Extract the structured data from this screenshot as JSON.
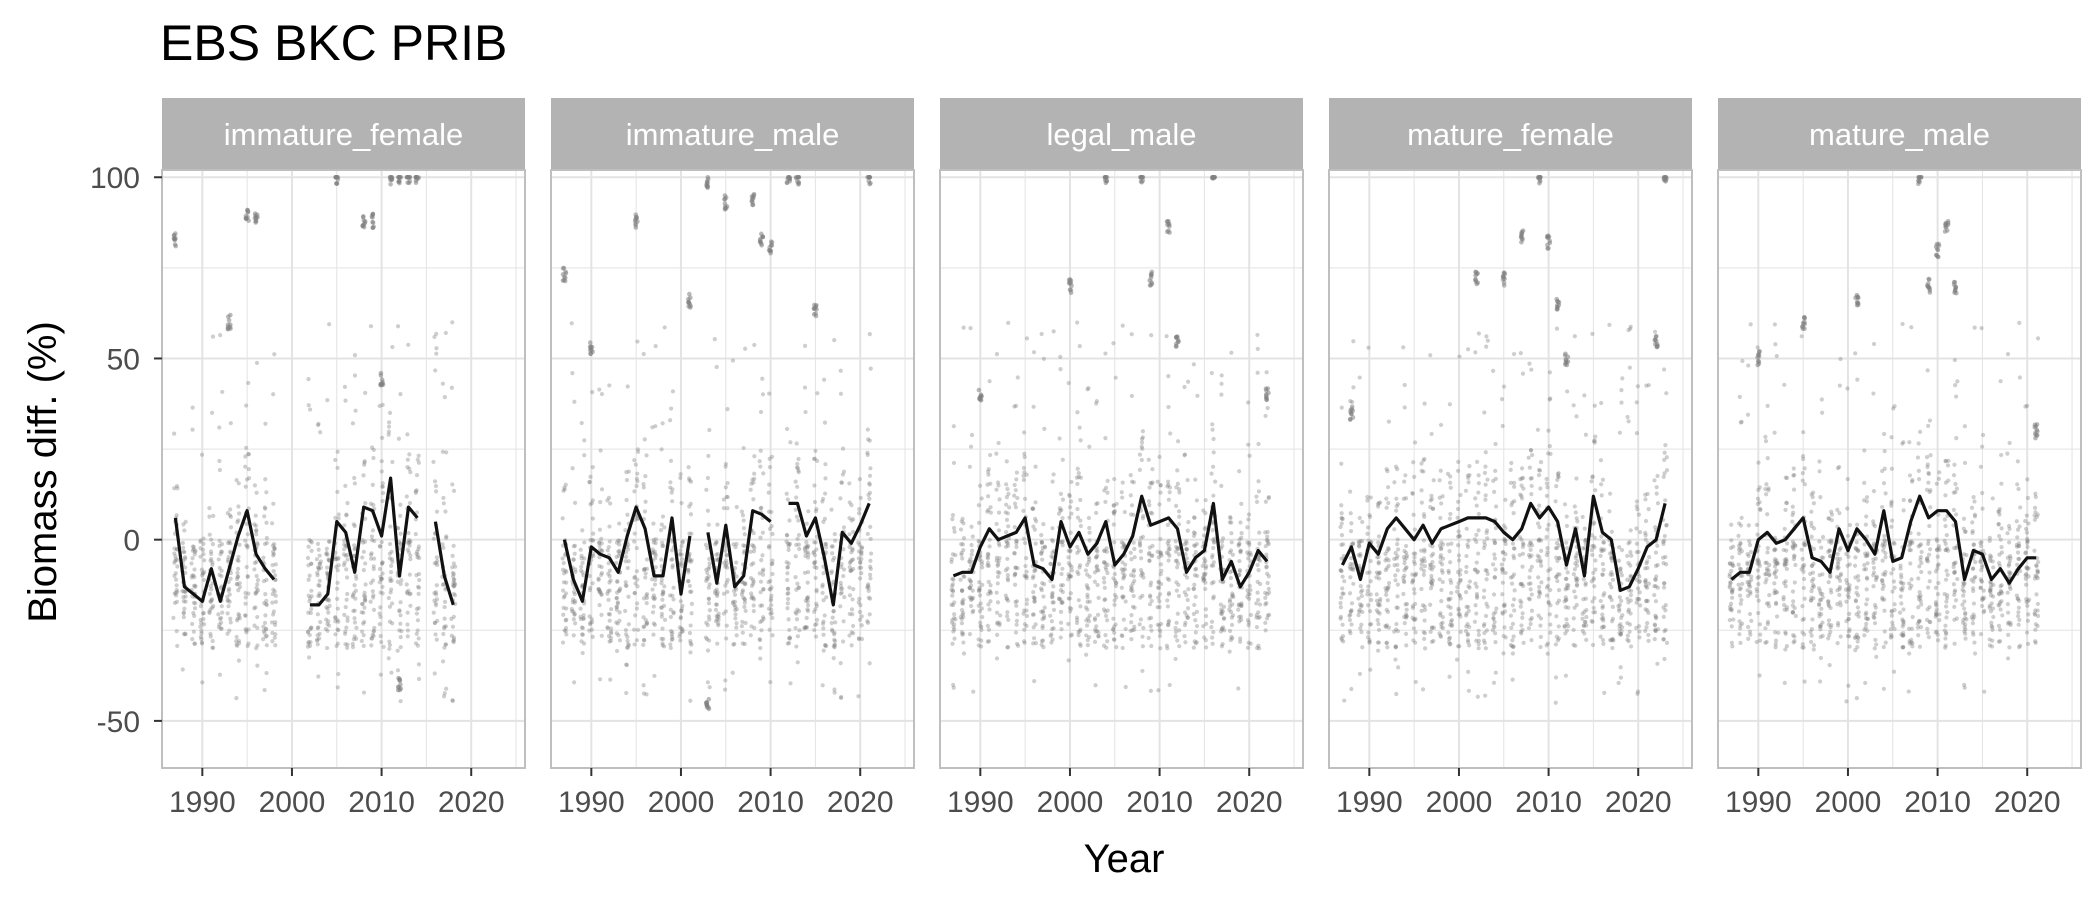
{
  "chart_data": {
    "type": "scatter",
    "title": "EBS BKC PRIB",
    "xlabel": "Year",
    "ylabel": "Biomass diff. (%)",
    "xlim": [
      1985.5,
      2026
    ],
    "ylim": [
      -63,
      102
    ],
    "x_ticks": [
      1990,
      2000,
      2010,
      2020
    ],
    "y_ticks": [
      -50,
      0,
      50,
      100
    ],
    "grid": true,
    "colors": {
      "points": "#7f7f7f",
      "line": "#111111",
      "strip": "#b3b3b3",
      "strip_text": "#ffffff",
      "grid": "#e3e3e3",
      "panel_border": "#bfbfbf"
    },
    "panels": [
      {
        "name": "immature_female",
        "series": [
          {
            "segments": [
              [
                [
                  1987,
                  6
                ],
                [
                  1988,
                  -13
                ],
                [
                  1989,
                  -15
                ],
                [
                  1990,
                  -17
                ],
                [
                  1991,
                  -8
                ],
                [
                  1992,
                  -17
                ],
                [
                  1993,
                  -8
                ],
                [
                  1994,
                  1
                ],
                [
                  1995,
                  8
                ],
                [
                  1996,
                  -4
                ],
                [
                  1997,
                  -8
                ],
                [
                  1998,
                  -11
                ]
              ],
              [
                [
                  2002,
                  -18
                ],
                [
                  2003,
                  -18
                ],
                [
                  2004,
                  -15
                ],
                [
                  2005,
                  5
                ],
                [
                  2006,
                  2
                ],
                [
                  2007,
                  -9
                ],
                [
                  2008,
                  9
                ],
                [
                  2009,
                  8
                ],
                [
                  2010,
                  1
                ],
                [
                  2011,
                  17
                ],
                [
                  2012,
                  -10
                ],
                [
                  2013,
                  9
                ],
                [
                  2014,
                  6
                ]
              ],
              [
                [
                  2016,
                  5
                ],
                [
                  2017,
                  -10
                ],
                [
                  2018,
                  -18
                ]
              ]
            ]
          }
        ],
        "highlights": [
          [
            1987,
            83
          ],
          [
            1995,
            89
          ],
          [
            1996,
            88
          ],
          [
            2005,
            100
          ],
          [
            2008,
            88
          ],
          [
            2009,
            88
          ],
          [
            2011,
            100
          ],
          [
            2012,
            100
          ],
          [
            2013,
            100
          ],
          [
            2014,
            100
          ],
          [
            1993,
            60
          ],
          [
            2010,
            44
          ],
          [
            2012,
            -40
          ]
        ]
      },
      {
        "name": "immature_male",
        "series": [
          {
            "segments": [
              [
                [
                  1987,
                  0
                ],
                [
                  1988,
                  -11
                ],
                [
                  1989,
                  -17
                ],
                [
                  1990,
                  -2
                ],
                [
                  1991,
                  -4
                ],
                [
                  1992,
                  -5
                ],
                [
                  1993,
                  -9
                ],
                [
                  1994,
                  1
                ],
                [
                  1995,
                  9
                ],
                [
                  1996,
                  3
                ],
                [
                  1997,
                  -10
                ],
                [
                  1998,
                  -10
                ],
                [
                  1999,
                  6
                ],
                [
                  2000,
                  -15
                ],
                [
                  2001,
                  1
                ]
              ],
              [
                [
                  2003,
                  2
                ],
                [
                  2004,
                  -12
                ],
                [
                  2005,
                  4
                ],
                [
                  2006,
                  -13
                ],
                [
                  2007,
                  -10
                ],
                [
                  2008,
                  8
                ],
                [
                  2009,
                  7
                ],
                [
                  2010,
                  5
                ]
              ],
              [
                [
                  2012,
                  10
                ],
                [
                  2013,
                  10
                ],
                [
                  2014,
                  1
                ],
                [
                  2015,
                  6
                ],
                [
                  2016,
                  -5
                ],
                [
                  2017,
                  -18
                ],
                [
                  2018,
                  2
                ],
                [
                  2019,
                  -1
                ],
                [
                  2020,
                  4
                ],
                [
                  2021,
                  10
                ]
              ]
            ]
          }
        ],
        "highlights": [
          [
            1987,
            73
          ],
          [
            1990,
            53
          ],
          [
            1995,
            88
          ],
          [
            2001,
            66
          ],
          [
            2003,
            99
          ],
          [
            2005,
            93
          ],
          [
            2008,
            94
          ],
          [
            2009,
            83
          ],
          [
            2010,
            81
          ],
          [
            2012,
            100
          ],
          [
            2013,
            100
          ],
          [
            2015,
            63
          ],
          [
            2021,
            100
          ],
          [
            2003,
            -45
          ]
        ]
      },
      {
        "name": "legal_male",
        "series": [
          {
            "segments": [
              [
                [
                  1987,
                  -10
                ],
                [
                  1988,
                  -9
                ],
                [
                  1989,
                  -9
                ],
                [
                  1990,
                  -2
                ],
                [
                  1991,
                  3
                ],
                [
                  1992,
                  0
                ],
                [
                  1993,
                  1
                ],
                [
                  1994,
                  2
                ],
                [
                  1995,
                  6
                ],
                [
                  1996,
                  -7
                ],
                [
                  1997,
                  -8
                ],
                [
                  1998,
                  -11
                ],
                [
                  1999,
                  5
                ],
                [
                  2000,
                  -2
                ],
                [
                  2001,
                  2
                ],
                [
                  2002,
                  -4
                ],
                [
                  2003,
                  -1
                ],
                [
                  2004,
                  5
                ],
                [
                  2005,
                  -7
                ],
                [
                  2006,
                  -4
                ],
                [
                  2007,
                  1
                ],
                [
                  2008,
                  12
                ],
                [
                  2009,
                  4
                ],
                [
                  2010,
                  5
                ],
                [
                  2011,
                  6
                ],
                [
                  2012,
                  3
                ],
                [
                  2013,
                  -9
                ],
                [
                  2014,
                  -5
                ],
                [
                  2015,
                  -3
                ],
                [
                  2016,
                  10
                ],
                [
                  2017,
                  -11
                ],
                [
                  2018,
                  -6
                ],
                [
                  2019,
                  -13
                ],
                [
                  2020,
                  -9
                ],
                [
                  2021,
                  -3
                ],
                [
                  2022,
                  -6
                ]
              ]
            ]
          }
        ],
        "highlights": [
          [
            1990,
            40
          ],
          [
            2000,
            70
          ],
          [
            2004,
            100
          ],
          [
            2008,
            100
          ],
          [
            2009,
            72
          ],
          [
            2011,
            86
          ],
          [
            2016,
            100
          ],
          [
            2012,
            55
          ],
          [
            2022,
            40
          ]
        ]
      },
      {
        "name": "mature_female",
        "series": [
          {
            "segments": [
              [
                [
                  1987,
                  -7
                ],
                [
                  1988,
                  -2
                ],
                [
                  1989,
                  -11
                ],
                [
                  1990,
                  -1
                ],
                [
                  1991,
                  -4
                ],
                [
                  1992,
                  3
                ],
                [
                  1993,
                  6
                ],
                [
                  1994,
                  3
                ],
                [
                  1995,
                  0
                ],
                [
                  1996,
                  4
                ],
                [
                  1997,
                  -1
                ],
                [
                  1998,
                  3
                ],
                [
                  1999,
                  4
                ],
                [
                  2000,
                  5
                ],
                [
                  2001,
                  6
                ],
                [
                  2002,
                  6
                ],
                [
                  2003,
                  6
                ],
                [
                  2004,
                  5
                ],
                [
                  2005,
                  2
                ],
                [
                  2006,
                  0
                ],
                [
                  2007,
                  3
                ],
                [
                  2008,
                  10
                ],
                [
                  2009,
                  6
                ],
                [
                  2010,
                  9
                ],
                [
                  2011,
                  5
                ],
                [
                  2012,
                  -7
                ],
                [
                  2013,
                  3
                ],
                [
                  2014,
                  -10
                ],
                [
                  2015,
                  12
                ],
                [
                  2016,
                  2
                ],
                [
                  2017,
                  0
                ],
                [
                  2018,
                  -14
                ],
                [
                  2019,
                  -13
                ],
                [
                  2020,
                  -8
                ],
                [
                  2021,
                  -2
                ],
                [
                  2022,
                  0
                ],
                [
                  2023,
                  10
                ]
              ]
            ]
          }
        ],
        "highlights": [
          [
            1988,
            35
          ],
          [
            2002,
            72
          ],
          [
            2005,
            72
          ],
          [
            2007,
            84
          ],
          [
            2009,
            100
          ],
          [
            2010,
            82
          ],
          [
            2011,
            65
          ],
          [
            2012,
            50
          ],
          [
            2023,
            100
          ],
          [
            2022,
            55
          ]
        ]
      },
      {
        "name": "mature_male",
        "series": [
          {
            "segments": [
              [
                [
                  1987,
                  -11
                ],
                [
                  1988,
                  -9
                ],
                [
                  1989,
                  -9
                ],
                [
                  1990,
                  0
                ],
                [
                  1991,
                  2
                ],
                [
                  1992,
                  -1
                ],
                [
                  1993,
                  0
                ],
                [
                  1994,
                  3
                ],
                [
                  1995,
                  6
                ],
                [
                  1996,
                  -5
                ],
                [
                  1997,
                  -6
                ],
                [
                  1998,
                  -9
                ],
                [
                  1999,
                  3
                ],
                [
                  2000,
                  -3
                ],
                [
                  2001,
                  3
                ],
                [
                  2002,
                  0
                ],
                [
                  2003,
                  -4
                ],
                [
                  2004,
                  8
                ],
                [
                  2005,
                  -6
                ],
                [
                  2006,
                  -5
                ],
                [
                  2007,
                  5
                ],
                [
                  2008,
                  12
                ],
                [
                  2009,
                  6
                ],
                [
                  2010,
                  8
                ],
                [
                  2011,
                  8
                ],
                [
                  2012,
                  5
                ],
                [
                  2013,
                  -11
                ],
                [
                  2014,
                  -3
                ],
                [
                  2015,
                  -4
                ],
                [
                  2016,
                  -11
                ],
                [
                  2017,
                  -8
                ],
                [
                  2018,
                  -12
                ],
                [
                  2019,
                  -8
                ],
                [
                  2020,
                  -5
                ],
                [
                  2021,
                  -5
                ]
              ]
            ]
          }
        ],
        "highlights": [
          [
            1990,
            50
          ],
          [
            1995,
            60
          ],
          [
            2001,
            66
          ],
          [
            2008,
            100
          ],
          [
            2009,
            70
          ],
          [
            2010,
            80
          ],
          [
            2011,
            87
          ],
          [
            2012,
            70
          ],
          [
            2021,
            30
          ]
        ]
      }
    ]
  }
}
